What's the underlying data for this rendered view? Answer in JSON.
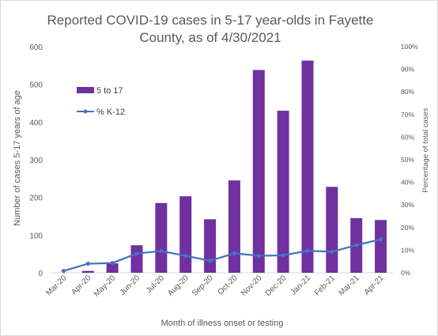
{
  "chart_data": {
    "type": "bar",
    "title_line1": "Reported COVID-19 cases in 5-17 year-olds in Fayette",
    "title_line2": "County, as of 4/30/2021",
    "xlabel": "Month of illness onset or testing",
    "ylabel": "Number of cases 5-17 years of age",
    "y2label": "Percentage of total cases",
    "categories": [
      "Mar-20",
      "Apr-20",
      "May-20",
      "Jun-20",
      "Jul-20",
      "Aug-20",
      "Sep-20",
      "Oct-20",
      "Nov-20",
      "Dec-20",
      "Jan-21",
      "Feb-21",
      "Mar-21",
      "Apr-21"
    ],
    "ylim": [
      0,
      600
    ],
    "yticks": [
      0,
      100,
      200,
      300,
      400,
      500,
      600
    ],
    "y2lim": [
      0,
      100
    ],
    "y2ticks": [
      "0%",
      "10%",
      "20%",
      "30%",
      "40%",
      "50%",
      "60%",
      "70%",
      "80%",
      "90%",
      "100%"
    ],
    "grid": false,
    "legend_position": "top-left",
    "series": [
      {
        "name": "5 to 17",
        "kind": "bar",
        "axis": "left",
        "color": "#7030a0",
        "values": [
          0,
          5,
          25,
          73,
          185,
          203,
          142,
          245,
          538,
          430,
          563,
          228,
          145,
          140
        ]
      },
      {
        "name": "% K-12",
        "kind": "line",
        "axis": "right",
        "color": "#4472c4",
        "values": [
          0.8,
          4.0,
          4.3,
          8.5,
          9.6,
          7.5,
          5.3,
          8.6,
          7.5,
          7.7,
          9.7,
          9.3,
          12.2,
          14.8
        ]
      }
    ]
  }
}
